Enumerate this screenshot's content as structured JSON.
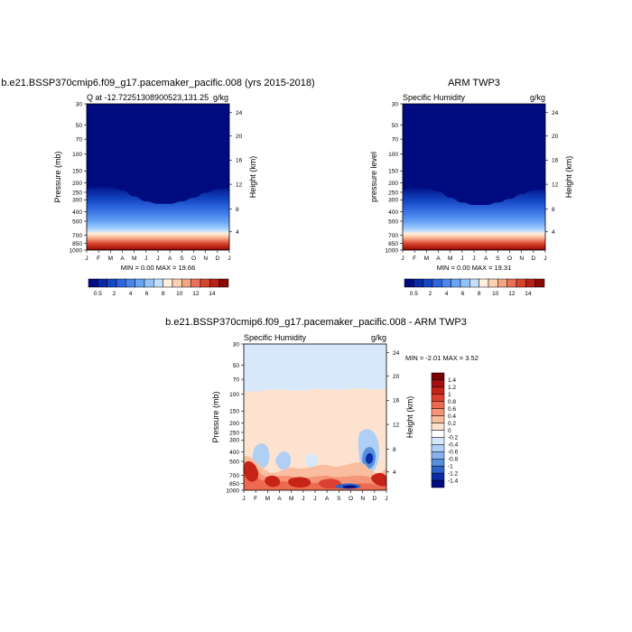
{
  "chart_data": [
    {
      "type": "heatmap",
      "title": "b.e21.BSSP370cmip6.f09_g17.pacemaker_pacific.008 (yrs 2015-2018)",
      "subtitle_left": "Q at -12.72251308900523,131.25",
      "units": "g/kg",
      "ylabel": "Pressure (mb)",
      "ylabel_right": "Height (km)",
      "x_ticks": [
        "J",
        "F",
        "M",
        "A",
        "M",
        "J",
        "J",
        "A",
        "S",
        "O",
        "N",
        "D",
        "J"
      ],
      "y_ticks": [
        "30",
        "50",
        "70",
        "100",
        "150",
        "200",
        "250",
        "300",
        "400",
        "500",
        "700",
        "850",
        "1000"
      ],
      "y_ticks_right": [
        "24",
        "20",
        "16",
        "12",
        "8",
        "4"
      ],
      "stats": "MIN =   0.00 MAX =  19.66",
      "colorbar_labels": [
        "0.5",
        "2",
        "4",
        "6",
        "8",
        "10",
        "12",
        "14"
      ],
      "surface_q_by_month": [
        16.5,
        17.5,
        17.0,
        15.5,
        13.0,
        11.0,
        10.0,
        10.0,
        11.0,
        12.5,
        14.5,
        16.0,
        16.5
      ]
    },
    {
      "type": "heatmap",
      "title": "ARM TWP3",
      "subtitle_left": "Specific Humidity",
      "units": "g/kg",
      "ylabel": "pressure level",
      "ylabel_right": "Height (km)",
      "x_ticks": [
        "J",
        "F",
        "M",
        "A",
        "M",
        "J",
        "J",
        "A",
        "S",
        "O",
        "N",
        "D",
        "J"
      ],
      "y_ticks": [
        "30",
        "50",
        "70",
        "100",
        "150",
        "200",
        "250",
        "300",
        "400",
        "500",
        "700",
        "850",
        "1000"
      ],
      "y_ticks_right": [
        "24",
        "20",
        "16",
        "12",
        "8",
        "4"
      ],
      "stats": "MIN =   0.00 MAX =  19.31",
      "colorbar_labels": [
        "0.5",
        "2",
        "4",
        "6",
        "8",
        "10",
        "12",
        "14"
      ],
      "surface_q_by_month": [
        16.0,
        17.0,
        16.5,
        15.0,
        12.5,
        10.5,
        9.5,
        9.5,
        10.5,
        12.0,
        14.0,
        15.5,
        16.0
      ]
    },
    {
      "type": "heatmap",
      "title": "b.e21.BSSP370cmip6.f09_g17.pacemaker_pacific.008 - ARM TWP3",
      "subtitle_left": "Specific Humidity",
      "units": "g/kg",
      "ylabel": "Pressure (mb)",
      "ylabel_right": "Height (km)",
      "x_ticks": [
        "J",
        "F",
        "M",
        "A",
        "M",
        "J",
        "J",
        "A",
        "S",
        "O",
        "N",
        "D",
        "J"
      ],
      "y_ticks": [
        "30",
        "50",
        "70",
        "100",
        "150",
        "200",
        "250",
        "300",
        "400",
        "500",
        "700",
        "850",
        "1000"
      ],
      "y_ticks_right": [
        "24",
        "20",
        "16",
        "12",
        "8",
        "4"
      ],
      "stats": "MIN =  -2.01 MAX =   3.52",
      "colorbar_labels": [
        "1.4",
        "1.2",
        "1",
        "0.8",
        "0.6",
        "0.4",
        "0.2",
        "0",
        "-0.2",
        "-0.4",
        "-0.6",
        "-0.8",
        "-1",
        "-1.2",
        "-1.4"
      ]
    }
  ],
  "colors": {
    "background_dark": "#000b80",
    "abs_scale": [
      "#000b80",
      "#0a2aa3",
      "#1547c3",
      "#2d66dc",
      "#4a86ec",
      "#6aa5f5",
      "#93c3fb",
      "#c3dffd",
      "#fff0dc",
      "#fcd0b3",
      "#f4a582",
      "#e8715a",
      "#d6452f",
      "#b82315",
      "#8a0b04"
    ],
    "diff_scale": [
      "#7a0000",
      "#a50f0f",
      "#c62416",
      "#dc4030",
      "#ec6a50",
      "#f59477",
      "#fbbd9f",
      "#fde3cf",
      "#ffffff",
      "#d7e8fa",
      "#b0cff5",
      "#85b1ec",
      "#5690de",
      "#2e62c7",
      "#0a2ea8",
      "#000a80"
    ]
  }
}
